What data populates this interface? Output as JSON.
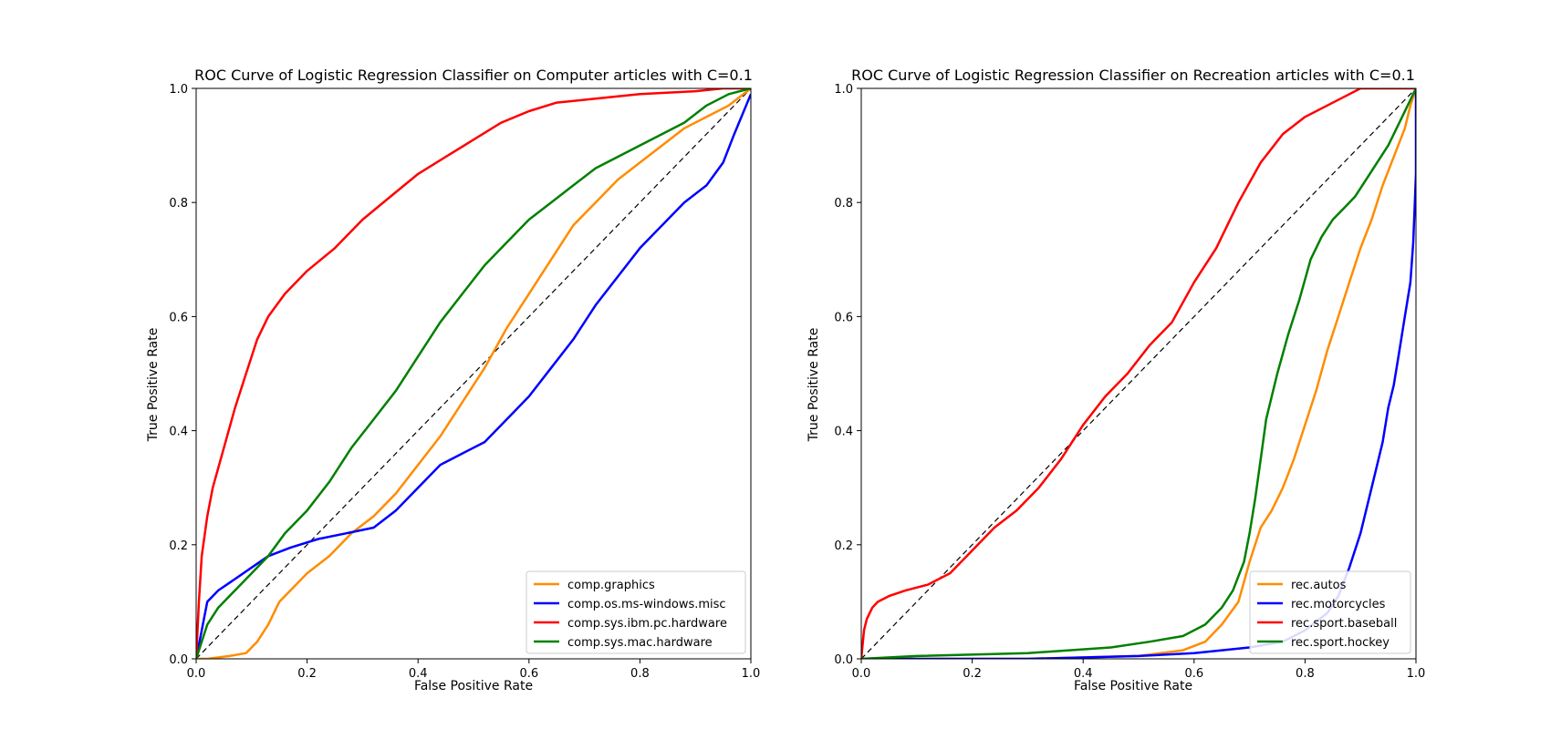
{
  "chart_data": [
    {
      "type": "line",
      "title": "ROC Curve of Logistic Regression Classifier on Computer articles with C=0.1",
      "xlabel": "False Positive Rate",
      "ylabel": "True Positive Rate",
      "xlim": [
        0.0,
        1.0
      ],
      "ylim": [
        0.0,
        1.0
      ],
      "xticks": [
        "0.0",
        "0.2",
        "0.4",
        "0.6",
        "0.8",
        "1.0"
      ],
      "yticks": [
        "0.0",
        "0.2",
        "0.4",
        "0.6",
        "0.8",
        "1.0"
      ],
      "grid": false,
      "legend_position": "lower-right",
      "diagonal_reference": true,
      "series": [
        {
          "name": "comp.graphics",
          "color": "#ff8c00",
          "x": [
            0.0,
            0.02,
            0.06,
            0.09,
            0.11,
            0.13,
            0.15,
            0.17,
            0.2,
            0.24,
            0.28,
            0.32,
            0.36,
            0.4,
            0.44,
            0.48,
            0.52,
            0.56,
            0.6,
            0.64,
            0.68,
            0.72,
            0.76,
            0.8,
            0.84,
            0.88,
            0.92,
            0.96,
            1.0
          ],
          "y": [
            0.0,
            0.0,
            0.005,
            0.01,
            0.03,
            0.06,
            0.1,
            0.12,
            0.15,
            0.18,
            0.22,
            0.25,
            0.29,
            0.34,
            0.39,
            0.45,
            0.51,
            0.58,
            0.64,
            0.7,
            0.76,
            0.8,
            0.84,
            0.87,
            0.9,
            0.93,
            0.95,
            0.97,
            1.0
          ]
        },
        {
          "name": "comp.os.ms-windows.misc",
          "color": "#0000ff",
          "x": [
            0.0,
            0.01,
            0.02,
            0.04,
            0.07,
            0.1,
            0.13,
            0.17,
            0.22,
            0.27,
            0.32,
            0.36,
            0.4,
            0.44,
            0.48,
            0.52,
            0.56,
            0.6,
            0.64,
            0.68,
            0.72,
            0.76,
            0.8,
            0.84,
            0.88,
            0.92,
            0.95,
            0.97,
            1.0
          ],
          "y": [
            0.0,
            0.05,
            0.1,
            0.12,
            0.14,
            0.16,
            0.18,
            0.195,
            0.21,
            0.22,
            0.23,
            0.26,
            0.3,
            0.34,
            0.36,
            0.38,
            0.42,
            0.46,
            0.51,
            0.56,
            0.62,
            0.67,
            0.72,
            0.76,
            0.8,
            0.83,
            0.87,
            0.92,
            0.99
          ]
        },
        {
          "name": "comp.sys.ibm.pc.hardware",
          "color": "#ff0000",
          "x": [
            0.0,
            0.005,
            0.01,
            0.02,
            0.03,
            0.05,
            0.07,
            0.09,
            0.11,
            0.13,
            0.16,
            0.2,
            0.25,
            0.3,
            0.35,
            0.4,
            0.45,
            0.5,
            0.55,
            0.6,
            0.65,
            0.7,
            0.8,
            0.9,
            0.95,
            1.0
          ],
          "y": [
            0.0,
            0.1,
            0.18,
            0.25,
            0.3,
            0.37,
            0.44,
            0.5,
            0.56,
            0.6,
            0.64,
            0.68,
            0.72,
            0.77,
            0.81,
            0.85,
            0.88,
            0.91,
            0.94,
            0.96,
            0.975,
            0.98,
            0.99,
            0.995,
            1.0,
            1.0
          ]
        },
        {
          "name": "comp.sys.mac.hardware",
          "color": "#008000",
          "x": [
            0.0,
            0.01,
            0.02,
            0.04,
            0.07,
            0.1,
            0.13,
            0.16,
            0.2,
            0.24,
            0.28,
            0.32,
            0.36,
            0.4,
            0.44,
            0.48,
            0.52,
            0.56,
            0.6,
            0.64,
            0.68,
            0.72,
            0.76,
            0.8,
            0.84,
            0.88,
            0.92,
            0.96,
            1.0
          ],
          "y": [
            0.0,
            0.03,
            0.06,
            0.09,
            0.12,
            0.15,
            0.18,
            0.22,
            0.26,
            0.31,
            0.37,
            0.42,
            0.47,
            0.53,
            0.59,
            0.64,
            0.69,
            0.73,
            0.77,
            0.8,
            0.83,
            0.86,
            0.88,
            0.9,
            0.92,
            0.94,
            0.97,
            0.99,
            1.0
          ]
        }
      ]
    },
    {
      "type": "line",
      "title": "ROC Curve of Logistic Regression Classifier on Recreation articles with C=0.1",
      "xlabel": "False Positive Rate",
      "ylabel": "True Positive Rate",
      "xlim": [
        0.0,
        1.0
      ],
      "ylim": [
        0.0,
        1.0
      ],
      "xticks": [
        "0.0",
        "0.2",
        "0.4",
        "0.6",
        "0.8",
        "1.0"
      ],
      "yticks": [
        "0.0",
        "0.2",
        "0.4",
        "0.6",
        "0.8",
        "1.0"
      ],
      "grid": false,
      "legend_position": "lower-right",
      "diagonal_reference": true,
      "series": [
        {
          "name": "rec.autos",
          "color": "#ff8c00",
          "x": [
            0.0,
            0.3,
            0.5,
            0.58,
            0.62,
            0.65,
            0.68,
            0.7,
            0.72,
            0.74,
            0.76,
            0.78,
            0.8,
            0.82,
            0.84,
            0.86,
            0.88,
            0.9,
            0.92,
            0.94,
            0.96,
            0.98,
            0.99,
            1.0
          ],
          "y": [
            0.0,
            0.0,
            0.005,
            0.015,
            0.03,
            0.06,
            0.1,
            0.17,
            0.23,
            0.26,
            0.3,
            0.35,
            0.41,
            0.47,
            0.54,
            0.6,
            0.66,
            0.72,
            0.77,
            0.83,
            0.88,
            0.93,
            0.97,
            1.0
          ]
        },
        {
          "name": "rec.motorcycles",
          "color": "#0000ff",
          "x": [
            0.0,
            0.3,
            0.5,
            0.6,
            0.7,
            0.76,
            0.8,
            0.84,
            0.86,
            0.88,
            0.9,
            0.92,
            0.94,
            0.95,
            0.96,
            0.97,
            0.98,
            0.99,
            0.995,
            1.0,
            1.0
          ],
          "y": [
            0.0,
            0.0,
            0.005,
            0.01,
            0.02,
            0.03,
            0.05,
            0.08,
            0.11,
            0.16,
            0.22,
            0.3,
            0.38,
            0.44,
            0.48,
            0.54,
            0.6,
            0.66,
            0.73,
            0.85,
            1.0
          ]
        },
        {
          "name": "rec.sport.baseball",
          "color": "#ff0000",
          "x": [
            0.0,
            0.005,
            0.01,
            0.02,
            0.03,
            0.05,
            0.08,
            0.12,
            0.16,
            0.2,
            0.24,
            0.28,
            0.32,
            0.36,
            0.4,
            0.44,
            0.48,
            0.52,
            0.56,
            0.6,
            0.64,
            0.68,
            0.72,
            0.76,
            0.8,
            0.84,
            0.88,
            0.9,
            1.0
          ],
          "y": [
            0.0,
            0.05,
            0.07,
            0.09,
            0.1,
            0.11,
            0.12,
            0.13,
            0.15,
            0.19,
            0.23,
            0.26,
            0.3,
            0.35,
            0.41,
            0.46,
            0.5,
            0.55,
            0.59,
            0.66,
            0.72,
            0.8,
            0.87,
            0.92,
            0.95,
            0.97,
            0.99,
            1.0,
            1.0
          ]
        },
        {
          "name": "rec.sport.hockey",
          "color": "#008000",
          "x": [
            0.0,
            0.1,
            0.3,
            0.45,
            0.52,
            0.58,
            0.62,
            0.65,
            0.67,
            0.69,
            0.7,
            0.71,
            0.72,
            0.73,
            0.75,
            0.77,
            0.79,
            0.81,
            0.83,
            0.85,
            0.87,
            0.89,
            0.91,
            0.93,
            0.95,
            0.97,
            0.99,
            1.0
          ],
          "y": [
            0.0,
            0.005,
            0.01,
            0.02,
            0.03,
            0.04,
            0.06,
            0.09,
            0.12,
            0.17,
            0.22,
            0.28,
            0.35,
            0.42,
            0.5,
            0.57,
            0.63,
            0.7,
            0.74,
            0.77,
            0.79,
            0.81,
            0.84,
            0.87,
            0.9,
            0.94,
            0.98,
            1.0
          ]
        }
      ]
    }
  ]
}
